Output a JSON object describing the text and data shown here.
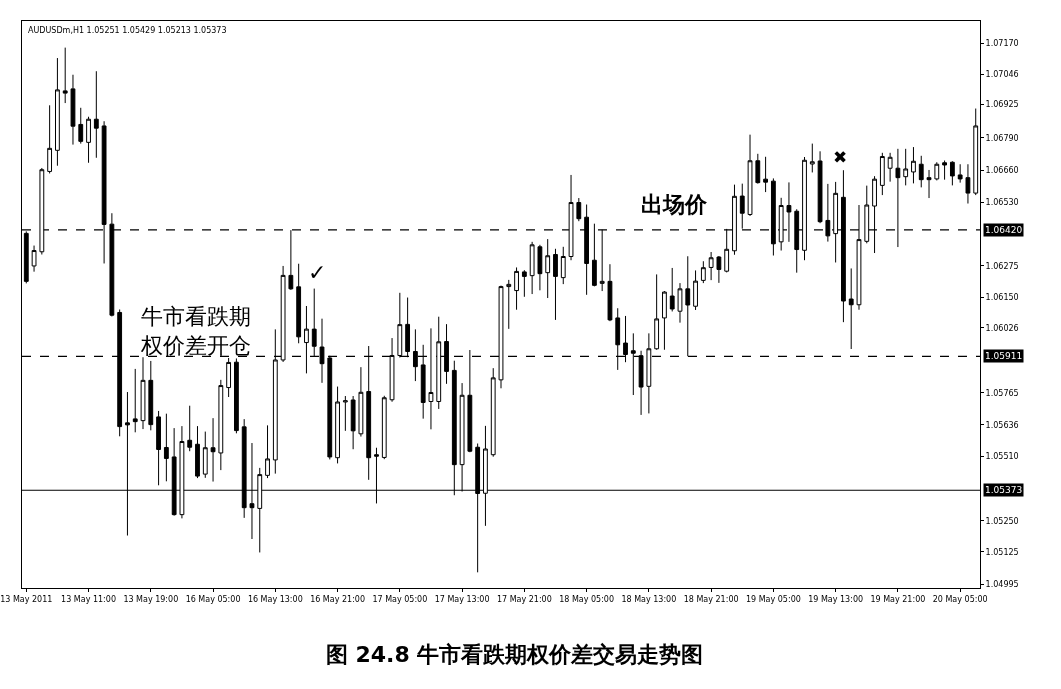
{
  "chart_data": {
    "type": "candlestick",
    "title": "图 24.8 牛市看跌期权价差交易走势图",
    "color": "#000000",
    "categories": [
      "13 May 2011",
      null,
      null,
      null,
      null,
      null,
      null,
      null,
      "13 May 11:00",
      null,
      null,
      null,
      null,
      null,
      null,
      null,
      "13 May 19:00",
      null,
      null,
      null,
      null,
      null,
      null,
      null,
      "16 May 05:00",
      null,
      null,
      null,
      null,
      null,
      null,
      null,
      "16 May 13:00",
      null,
      null,
      null,
      null,
      null,
      null,
      null,
      "16 May 21:00",
      null,
      null,
      null,
      null,
      null,
      null,
      null,
      "17 May 05:00",
      null,
      null,
      null,
      null,
      null,
      null,
      null,
      "17 May 13:00",
      null,
      null,
      null,
      null,
      null,
      null,
      null,
      "17 May 21:00",
      null,
      null,
      null,
      null,
      null,
      null,
      null,
      "18 May 05:00",
      null,
      null,
      null,
      null,
      null,
      null,
      null,
      "18 May 13:00",
      null,
      null,
      null,
      null,
      null,
      null,
      null,
      "18 May 21:00",
      null,
      null,
      null,
      null,
      null,
      null,
      null,
      "19 May 05:00",
      null,
      null,
      null,
      null,
      null,
      null,
      null,
      "19 May 13:00",
      null,
      null,
      null,
      null,
      null,
      null,
      null,
      "19 May 21:00",
      null,
      null,
      null,
      null,
      null,
      null,
      null,
      "20 May 05:00",
      null,
      null
    ],
    "ohlc": [
      [
        1.06406,
        1.06414,
        1.06205,
        1.06213
      ],
      [
        1.06275,
        1.06357,
        1.06252,
        1.06337
      ],
      [
        1.06332,
        1.06669,
        1.06321,
        1.06662
      ],
      [
        1.06655,
        1.06921,
        1.06647,
        1.06748
      ],
      [
        1.0674,
        1.07111,
        1.06678,
        1.06983
      ],
      [
        1.06979,
        1.07153,
        1.0693,
        1.0697
      ],
      [
        1.06987,
        1.07044,
        1.06763,
        1.06837
      ],
      [
        1.06844,
        1.06911,
        1.06767,
        1.06776
      ],
      [
        1.06772,
        1.06875,
        1.0669,
        1.06865
      ],
      [
        1.06865,
        1.07058,
        1.0671,
        1.06829
      ],
      [
        1.06838,
        1.06857,
        1.06285,
        1.06442
      ],
      [
        1.06443,
        1.06487,
        1.06072,
        1.06077
      ],
      [
        1.06088,
        1.061,
        1.0559,
        1.05629
      ],
      [
        1.05644,
        1.05768,
        1.05191,
        1.05636
      ],
      [
        1.0566,
        1.05861,
        1.05606,
        1.05649
      ],
      [
        1.05653,
        1.05908,
        1.05619,
        1.05815
      ],
      [
        1.05815,
        1.05893,
        1.05614,
        1.05637
      ],
      [
        1.05668,
        1.05692,
        1.05393,
        1.05537
      ],
      [
        1.05545,
        1.05681,
        1.05409,
        1.05501
      ],
      [
        1.05507,
        1.05623,
        1.05271,
        1.05275
      ],
      [
        1.05275,
        1.05631,
        1.0526,
        1.05569
      ],
      [
        1.05574,
        1.05713,
        1.0553,
        1.05546
      ],
      [
        1.05558,
        1.05631,
        1.05422,
        1.0543
      ],
      [
        1.05438,
        1.05609,
        1.05423,
        1.05544
      ],
      [
        1.05544,
        1.05663,
        1.05408,
        1.05528
      ],
      [
        1.05523,
        1.05817,
        1.05454,
        1.05794
      ],
      [
        1.05786,
        1.05905,
        1.05748,
        1.05887
      ],
      [
        1.05888,
        1.05903,
        1.05602,
        1.05613
      ],
      [
        1.05628,
        1.05659,
        1.05262,
        1.05303
      ],
      [
        1.05319,
        1.05563,
        1.05177,
        1.05303
      ],
      [
        1.053,
        1.05463,
        1.05123,
        1.05436
      ],
      [
        1.05433,
        1.05634,
        1.05422,
        1.05499
      ],
      [
        1.05495,
        1.0602,
        1.0544,
        1.05897
      ],
      [
        1.05897,
        1.06275,
        1.05889,
        1.06237
      ],
      [
        1.06237,
        1.06419,
        1.06179,
        1.06183
      ],
      [
        1.06191,
        1.06284,
        1.05964,
        1.0599
      ],
      [
        1.05967,
        1.06114,
        1.05843,
        1.06021
      ],
      [
        1.06021,
        1.06184,
        1.05913,
        1.05952
      ],
      [
        1.05949,
        1.06063,
        1.05805,
        1.05882
      ],
      [
        1.05905,
        1.05914,
        1.05497,
        1.05507
      ],
      [
        1.05504,
        1.0579,
        1.05481,
        1.05728
      ],
      [
        1.05728,
        1.05752,
        1.05612,
        1.05733
      ],
      [
        1.05736,
        1.05752,
        1.05538,
        1.05612
      ],
      [
        1.056,
        1.05868,
        1.05589,
        1.05767
      ],
      [
        1.0577,
        1.05953,
        1.05415,
        1.05504
      ],
      [
        1.05516,
        1.05544,
        1.0532,
        1.0551
      ],
      [
        1.05505,
        1.05753,
        1.05498,
        1.05745
      ],
      [
        1.05737,
        1.05985,
        1.05729,
        1.05915
      ],
      [
        1.05915,
        1.06167,
        1.05907,
        1.06039
      ],
      [
        1.0604,
        1.06148,
        1.05908,
        1.05931
      ],
      [
        1.05931,
        1.0602,
        1.05812,
        1.0587
      ],
      [
        1.05877,
        1.05958,
        1.05661,
        1.05726
      ],
      [
        1.0573,
        1.06024,
        1.05618,
        1.05766
      ],
      [
        1.0573,
        1.06071,
        1.057,
        1.0597
      ],
      [
        1.05971,
        1.06041,
        1.05801,
        1.05851
      ],
      [
        1.05855,
        1.05894,
        1.05353,
        1.05476
      ],
      [
        1.05476,
        1.05804,
        1.05368,
        1.05755
      ],
      [
        1.05755,
        1.05937,
        1.05526,
        1.0553
      ],
      [
        1.05546,
        1.05561,
        1.05043,
        1.0536
      ],
      [
        1.05361,
        1.05632,
        1.0523,
        1.05539
      ],
      [
        1.05516,
        1.05864,
        1.05508,
        1.05825
      ],
      [
        1.05817,
        1.06196,
        1.05783,
        1.06192
      ],
      [
        1.06192,
        1.06219,
        1.06022,
        1.06201
      ],
      [
        1.06176,
        1.06269,
        1.06099,
        1.06253
      ],
      [
        1.06251,
        1.06258,
        1.06151,
        1.06233
      ],
      [
        1.06236,
        1.06372,
        1.06162,
        1.0636
      ],
      [
        1.06352,
        1.0636,
        1.06177,
        1.06244
      ],
      [
        1.06248,
        1.06383,
        1.06146,
        1.06316
      ],
      [
        1.06321,
        1.06344,
        1.06058,
        1.06233
      ],
      [
        1.06228,
        1.06352,
        1.06202,
        1.06313
      ],
      [
        1.06313,
        1.06641,
        1.06298,
        1.0653
      ],
      [
        1.0653,
        1.06548,
        1.06455,
        1.06465
      ],
      [
        1.06471,
        1.06522,
        1.06159,
        1.06285
      ],
      [
        1.06298,
        1.06445,
        1.06193,
        1.06197
      ],
      [
        1.06205,
        1.06421,
        1.06174,
        1.06213
      ],
      [
        1.06213,
        1.06282,
        1.06053,
        1.06058
      ],
      [
        1.06066,
        1.06105,
        1.05857,
        1.05958
      ],
      [
        1.05965,
        1.06074,
        1.05888,
        1.05919
      ],
      [
        1.05934,
        1.06004,
        1.05756,
        1.05924
      ],
      [
        1.05914,
        1.05934,
        1.05676,
        1.05788
      ],
      [
        1.05791,
        1.06004,
        1.05682,
        1.05942
      ],
      [
        1.05942,
        1.06241,
        1.05938,
        1.06062
      ],
      [
        1.06066,
        1.06174,
        1.05938,
        1.0617
      ],
      [
        1.06154,
        1.06267,
        1.06092,
        1.06102
      ],
      [
        1.06093,
        1.06206,
        1.06047,
        1.06183
      ],
      [
        1.06183,
        1.06314,
        1.05912,
        1.06118
      ],
      [
        1.06113,
        1.06257,
        1.06098,
        1.06214
      ],
      [
        1.06217,
        1.06294,
        1.06206,
        1.06268
      ],
      [
        1.06269,
        1.06331,
        1.06218,
        1.06308
      ],
      [
        1.06311,
        1.06315,
        1.06207,
        1.06261
      ],
      [
        1.06254,
        1.06424,
        1.06249,
        1.06342
      ],
      [
        1.06336,
        1.06602,
        1.0632,
        1.06555
      ],
      [
        1.06556,
        1.06606,
        1.06425,
        1.06487
      ],
      [
        1.06482,
        1.06803,
        1.06476,
        1.06698
      ],
      [
        1.06698,
        1.06726,
        1.06606,
        1.0661
      ],
      [
        1.06624,
        1.06714,
        1.06572,
        1.06612
      ],
      [
        1.06616,
        1.06627,
        1.06317,
        1.06364
      ],
      [
        1.06372,
        1.06549,
        1.06337,
        1.06518
      ],
      [
        1.06518,
        1.06611,
        1.06372,
        1.06492
      ],
      [
        1.06495,
        1.06503,
        1.06248,
        1.06341
      ],
      [
        1.06338,
        1.06713,
        1.06298,
        1.067
      ],
      [
        1.06685,
        1.06767,
        1.06651,
        1.06694
      ],
      [
        1.06697,
        1.06736,
        1.06447,
        1.06453
      ],
      [
        1.06458,
        1.06605,
        1.06373,
        1.06396
      ],
      [
        1.06405,
        1.06613,
        1.06289,
        1.06567
      ],
      [
        1.06551,
        1.0666,
        1.06049,
        1.06134
      ],
      [
        1.06142,
        1.06265,
        1.05941,
        1.06119
      ],
      [
        1.06119,
        1.0652,
        1.06099,
        1.06381
      ],
      [
        1.06374,
        1.06598,
        1.06366,
        1.0652
      ],
      [
        1.06516,
        1.06636,
        1.06327,
        1.06624
      ],
      [
        1.06599,
        1.0673,
        1.0656,
        1.06715
      ],
      [
        1.06668,
        1.0673,
        1.06614,
        1.06712
      ],
      [
        1.06668,
        1.06746,
        1.06351,
        1.0663
      ],
      [
        1.06634,
        1.06746,
        1.06599,
        1.06665
      ],
      [
        1.06653,
        1.06753,
        1.06607,
        1.06696
      ],
      [
        1.06684,
        1.06718,
        1.06591,
        1.06622
      ],
      [
        1.0663,
        1.06661,
        1.06548,
        1.06622
      ],
      [
        1.06625,
        1.06692,
        1.06619,
        1.06684
      ],
      [
        1.0669,
        1.06699,
        1.06622,
        1.06681
      ],
      [
        1.06692,
        1.06696,
        1.06599,
        1.06637
      ],
      [
        1.06641,
        1.06684,
        1.0661,
        1.06625
      ],
      [
        1.0663,
        1.06684,
        1.06526,
        1.06568
      ],
      [
        1.06568,
        1.06908,
        1.0656,
        1.06838
      ]
    ],
    "ylim": [
      1.0498,
      1.0726
    ],
    "yticks": [
      {
        "value": 1.0717,
        "label": "1.07170"
      },
      {
        "value": 1.07046,
        "label": "1.07046"
      },
      {
        "value": 1.06925,
        "label": "1.06925"
      },
      {
        "value": 1.0679,
        "label": "1.06790"
      },
      {
        "value": 1.0666,
        "label": "1.06660"
      },
      {
        "value": 1.0653,
        "label": "1.06530"
      },
      {
        "value": 1.06275,
        "label": "1.06275"
      },
      {
        "value": 1.0615,
        "label": "1.06150"
      },
      {
        "value": 1.06026,
        "label": "1.06026"
      },
      {
        "value": 1.05765,
        "label": "1.05765"
      },
      {
        "value": 1.05636,
        "label": "1.05636"
      },
      {
        "value": 1.0551,
        "label": "1.05510"
      },
      {
        "value": 1.0525,
        "label": "1.05250"
      },
      {
        "value": 1.05125,
        "label": "1.05125"
      },
      {
        "value": 1.04995,
        "label": "1.04995"
      }
    ],
    "ref_lines": [
      {
        "axis": "y",
        "value": 1.0642,
        "label": "1.06420",
        "line_style": "dashed",
        "color": "#000000"
      },
      {
        "axis": "y",
        "value": 1.05911,
        "label": "1.05911",
        "line_style": "dashed",
        "color": "#000000"
      },
      {
        "axis": "y",
        "value": 1.05373,
        "label": "1.05373",
        "line_style": "solid",
        "color": "#000000"
      }
    ],
    "annotations": [
      "AUDUSDm,H1 1.05251 1.05429 1.05213 1.05373",
      "✓",
      "✖",
      "出场价",
      "牛市看跌期权价差开仓"
    ]
  }
}
